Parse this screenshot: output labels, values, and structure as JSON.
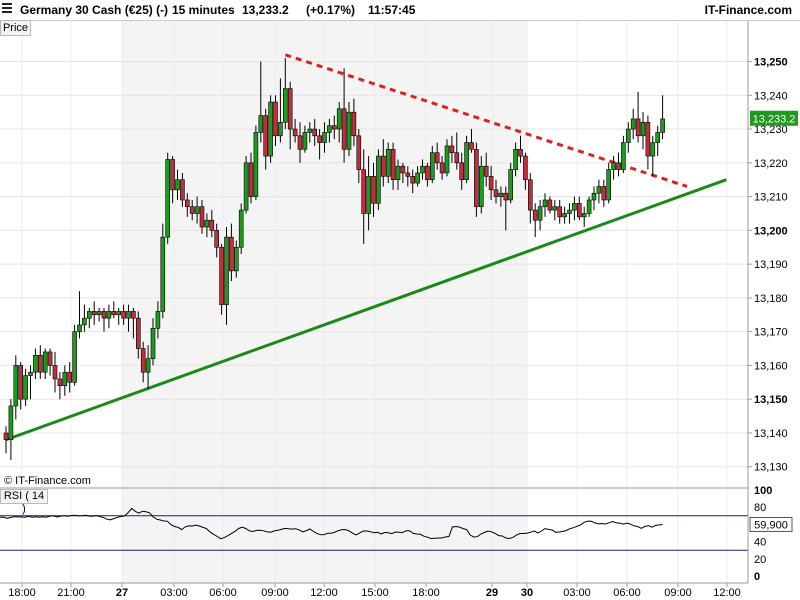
{
  "header": {
    "instrument": "Germany 30 Cash (€25) (-)",
    "timeframe": "15 minutes",
    "last_price": "13,233.2",
    "change": "(+0.17%)",
    "time": "11:57:45",
    "brand": "IT-Finance.com"
  },
  "price_panel": {
    "tab_label": "Price",
    "watermark": "© IT-Finance.com"
  },
  "rsi_panel": {
    "tab_label": "RSI ( 14 )"
  },
  "colors": {
    "up": "#1e9b1e",
    "down": "#c0303c",
    "trendline_support": "#1a8a1a",
    "trendline_resistance": "#e02020",
    "rsi_line": "#000000",
    "rsi_levels": "#1a1a80",
    "session_shade": "#f4f4f4"
  },
  "chart_data": {
    "type": "candlestick",
    "price_axis": {
      "ticks": [
        13130,
        13140,
        13150,
        13160,
        13170,
        13180,
        13190,
        13200,
        13210,
        13220,
        13230,
        13240,
        13250
      ],
      "tick_labels": [
        "13,130",
        "13,140",
        "13,150",
        "13,160",
        "13,170",
        "13,180",
        "13,190",
        "13,200",
        "13,210",
        "13,220",
        "13,230",
        "13,240",
        "13,250"
      ],
      "bold_ticks": [
        "13,150",
        "13,200",
        "13,250"
      ],
      "range": [
        13124,
        13262
      ],
      "last_price_label": "13,233.2",
      "last_price": 13233.2
    },
    "time_axis": {
      "labels": [
        "18:00",
        "21:00",
        "27",
        "03:00",
        "06:00",
        "09:00",
        "12:00",
        "15:00",
        "18:00",
        "29",
        "30",
        "03:00",
        "06:00",
        "09:00",
        "12:00"
      ],
      "bold_labels": [
        "27",
        "29",
        "30"
      ]
    },
    "rsi_axis": {
      "ticks": [
        0,
        20,
        40,
        60,
        80,
        100
      ],
      "tick_labels": [
        "0",
        "20",
        "40",
        "60",
        "80",
        "100"
      ],
      "bold_ticks": [
        "0",
        "100"
      ],
      "levels": [
        70,
        30
      ],
      "last_value_label": "59,900",
      "last_value": 59.9
    },
    "trendlines": [
      {
        "name": "support",
        "style": "solid",
        "from": {
          "bar": 0,
          "price": 13138
        },
        "to": {
          "bar": 147,
          "price": 13215
        }
      },
      {
        "name": "resistance",
        "style": "dashed",
        "from": {
          "bar": 57,
          "price": 13252
        },
        "to": {
          "bar": 139,
          "price": 13213
        }
      }
    ],
    "ohlc": [
      [
        13140,
        13142,
        13134,
        13138
      ],
      [
        13138,
        13150,
        13132,
        13148
      ],
      [
        13148,
        13163,
        13144,
        13160
      ],
      [
        13160,
        13161,
        13147,
        13150
      ],
      [
        13150,
        13159,
        13148,
        13157
      ],
      [
        13157,
        13160,
        13150,
        13158
      ],
      [
        13158,
        13165,
        13156,
        13163
      ],
      [
        13163,
        13166,
        13156,
        13158
      ],
      [
        13158,
        13165,
        13156,
        13164
      ],
      [
        13164,
        13165,
        13157,
        13160
      ],
      [
        13160,
        13164,
        13152,
        13156
      ],
      [
        13156,
        13158,
        13150,
        13154
      ],
      [
        13154,
        13160,
        13151,
        13158
      ],
      [
        13158,
        13161,
        13152,
        13155
      ],
      [
        13155,
        13172,
        13154,
        13170
      ],
      [
        13170,
        13182,
        13168,
        13172
      ],
      [
        13172,
        13178,
        13170,
        13174
      ],
      [
        13174,
        13177,
        13171,
        13176
      ],
      [
        13176,
        13179,
        13172,
        13175
      ],
      [
        13175,
        13177,
        13173,
        13176
      ],
      [
        13176,
        13177,
        13170,
        13174
      ],
      [
        13174,
        13178,
        13171,
        13176
      ],
      [
        13176,
        13179,
        13174,
        13175
      ],
      [
        13175,
        13177,
        13172,
        13176
      ],
      [
        13176,
        13178,
        13172,
        13174
      ],
      [
        13174,
        13178,
        13170,
        13176
      ],
      [
        13176,
        13177,
        13168,
        13174
      ],
      [
        13174,
        13176,
        13162,
        13165
      ],
      [
        13165,
        13167,
        13155,
        13158
      ],
      [
        13158,
        13166,
        13153,
        13162
      ],
      [
        13162,
        13174,
        13160,
        13171
      ],
      [
        13171,
        13179,
        13168,
        13176
      ],
      [
        13176,
        13202,
        13174,
        13198
      ],
      [
        13198,
        13223,
        13196,
        13221
      ],
      [
        13221,
        13222,
        13208,
        13212
      ],
      [
        13212,
        13218,
        13209,
        13215
      ],
      [
        13215,
        13217,
        13207,
        13209
      ],
      [
        13209,
        13211,
        13204,
        13207
      ],
      [
        13207,
        13209,
        13203,
        13205
      ],
      [
        13205,
        13210,
        13202,
        13207
      ],
      [
        13207,
        13209,
        13199,
        13201
      ],
      [
        13201,
        13205,
        13198,
        13203
      ],
      [
        13203,
        13206,
        13198,
        13200
      ],
      [
        13200,
        13202,
        13192,
        13195
      ],
      [
        13195,
        13196,
        13175,
        13178
      ],
      [
        13178,
        13201,
        13172,
        13198
      ],
      [
        13198,
        13202,
        13185,
        13188
      ],
      [
        13188,
        13197,
        13186,
        13195
      ],
      [
        13195,
        13208,
        13193,
        13206
      ],
      [
        13206,
        13222,
        13205,
        13220
      ],
      [
        13220,
        13223,
        13208,
        13210
      ],
      [
        13210,
        13231,
        13209,
        13229
      ],
      [
        13229,
        13250,
        13226,
        13234
      ],
      [
        13234,
        13236,
        13218,
        13222
      ],
      [
        13222,
        13240,
        13220,
        13238
      ],
      [
        13238,
        13240,
        13225,
        13228
      ],
      [
        13228,
        13245,
        13226,
        13232
      ],
      [
        13232,
        13251,
        13230,
        13242
      ],
      [
        13242,
        13244,
        13224,
        13230
      ],
      [
        13230,
        13233,
        13226,
        13228
      ],
      [
        13228,
        13232,
        13220,
        13224
      ],
      [
        13224,
        13231,
        13223,
        13229
      ],
      [
        13229,
        13232,
        13226,
        13230
      ],
      [
        13230,
        13233,
        13225,
        13228
      ],
      [
        13228,
        13230,
        13221,
        13226
      ],
      [
        13226,
        13232,
        13223,
        13229
      ],
      [
        13229,
        13233,
        13226,
        13231
      ],
      [
        13231,
        13234,
        13227,
        13230
      ],
      [
        13230,
        13238,
        13226,
        13236
      ],
      [
        13236,
        13248,
        13220,
        13224
      ],
      [
        13224,
        13238,
        13222,
        13235
      ],
      [
        13235,
        13239,
        13225,
        13228
      ],
      [
        13228,
        13230,
        13214,
        13218
      ],
      [
        13218,
        13224,
        13196,
        13205
      ],
      [
        13205,
        13222,
        13200,
        13216
      ],
      [
        13216,
        13220,
        13204,
        13208
      ],
      [
        13208,
        13224,
        13206,
        13222
      ],
      [
        13222,
        13227,
        13213,
        13216
      ],
      [
        13216,
        13226,
        13214,
        13224
      ],
      [
        13224,
        13226,
        13212,
        13215
      ],
      [
        13215,
        13221,
        13212,
        13219
      ],
      [
        13219,
        13220,
        13214,
        13217
      ],
      [
        13217,
        13219,
        13213,
        13216
      ],
      [
        13216,
        13218,
        13211,
        13214
      ],
      [
        13214,
        13219,
        13213,
        13217
      ],
      [
        13217,
        13221,
        13215,
        13219
      ],
      [
        13219,
        13220,
        13213,
        13215
      ],
      [
        13215,
        13225,
        13214,
        13223
      ],
      [
        13223,
        13226,
        13218,
        13220
      ],
      [
        13220,
        13222,
        13215,
        13217
      ],
      [
        13217,
        13227,
        13216,
        13225
      ],
      [
        13225,
        13228,
        13220,
        13223
      ],
      [
        13223,
        13229,
        13218,
        13220
      ],
      [
        13220,
        13223,
        13212,
        13215
      ],
      [
        13215,
        13228,
        13214,
        13226
      ],
      [
        13226,
        13230,
        13223,
        13224
      ],
      [
        13224,
        13226,
        13204,
        13207
      ],
      [
        13207,
        13222,
        13205,
        13219
      ],
      [
        13219,
        13223,
        13213,
        13216
      ],
      [
        13216,
        13219,
        13209,
        13212
      ],
      [
        13212,
        13215,
        13208,
        13210
      ],
      [
        13210,
        13213,
        13207,
        13211
      ],
      [
        13211,
        13213,
        13200,
        13209
      ],
      [
        13209,
        13220,
        13208,
        13218
      ],
      [
        13218,
        13226,
        13216,
        13224
      ],
      [
        13224,
        13228,
        13220,
        13222
      ],
      [
        13222,
        13223,
        13212,
        13215
      ],
      [
        13215,
        13217,
        13202,
        13206
      ],
      [
        13206,
        13208,
        13198,
        13203
      ],
      [
        13203,
        13209,
        13200,
        13207
      ],
      [
        13207,
        13211,
        13204,
        13209
      ],
      [
        13209,
        13210,
        13205,
        13206
      ],
      [
        13206,
        13209,
        13203,
        13207
      ],
      [
        13207,
        13209,
        13202,
        13204
      ],
      [
        13204,
        13207,
        13202,
        13205
      ],
      [
        13205,
        13208,
        13202,
        13206
      ],
      [
        13206,
        13210,
        13203,
        13208
      ],
      [
        13208,
        13210,
        13203,
        13204
      ],
      [
        13204,
        13207,
        13201,
        13205
      ],
      [
        13205,
        13210,
        13204,
        13209
      ],
      [
        13209,
        13213,
        13206,
        13211
      ],
      [
        13211,
        13215,
        13208,
        13213
      ],
      [
        13213,
        13215,
        13207,
        13209
      ],
      [
        13209,
        13220,
        13208,
        13218
      ],
      [
        13218,
        13222,
        13215,
        13220
      ],
      [
        13220,
        13223,
        13216,
        13218
      ],
      [
        13218,
        13228,
        13217,
        13226
      ],
      [
        13226,
        13232,
        13223,
        13230
      ],
      [
        13230,
        13236,
        13227,
        13233
      ],
      [
        13233,
        13241,
        13226,
        13228
      ],
      [
        13228,
        13235,
        13224,
        13232
      ],
      [
        13232,
        13234,
        13218,
        13222
      ],
      [
        13222,
        13228,
        13216,
        13226
      ],
      [
        13226,
        13231,
        13222,
        13229
      ],
      [
        13229,
        13240,
        13227,
        13233
      ]
    ],
    "rsi": [
      68.2,
      68.5,
      67.1,
      68.0,
      68.9,
      68.7,
      68.6,
      68.3,
      69.3,
      68.4,
      68.8,
      68.3,
      69.0,
      68.4,
      69.6,
      70.0,
      68.6,
      69.7,
      70.1,
      69.4,
      70.3,
      70.6,
      69.9,
      70.1,
      70.6,
      69.6,
      69.5,
      70.4,
      68.9,
      68.2,
      66.0,
      65.2,
      66.9,
      68.3,
      69.2,
      69.9,
      73.8,
      78.6,
      75.1,
      73.1,
      75.2,
      74.7,
      73.5,
      68.7,
      66.1,
      65.1,
      63.9,
      63.7,
      59.7,
      57.5,
      56.5,
      54.0,
      57.1,
      58.3,
      58.1,
      59.1,
      58.0,
      56.5,
      55.0,
      51.1,
      48.4,
      45.9,
      43.4,
      44.6,
      47.0,
      49.5,
      52.0,
      55.2,
      56.8,
      55.2,
      52.5,
      51.7,
      53.0,
      53.3,
      52.6,
      51.3,
      50.9,
      52.5,
      53.1,
      54.2,
      55.4,
      54.9,
      54.5,
      55.0,
      53.6,
      51.4,
      52.8,
      54.7,
      51.8,
      49.3,
      47.9,
      48.1,
      49.8,
      49.7,
      51.1,
      52.8,
      53.9,
      54.0,
      52.6,
      49.7,
      47.8,
      50.2,
      52.3,
      52.3,
      51.5,
      50.3,
      50.8,
      48.9,
      50.6,
      50.2,
      49.3,
      51.2,
      50.8,
      50.5,
      52.7,
      52.5,
      49.5,
      48.8,
      48.5,
      46.3,
      45.1,
      43.6,
      44.0,
      44.2,
      44.2,
      45.3,
      45.9,
      57.0,
      57.6,
      56.9,
      55.1,
      53.9,
      47.7,
      45.3,
      45.7,
      48.8,
      50.7,
      52.2,
      51.4,
      49.4,
      47.0,
      46.5,
      44.2,
      43.6,
      45.0,
      47.6,
      49.4,
      49.4,
      49.9,
      50.9,
      52.5,
      49.9,
      52.3,
      55.1,
      54.2,
      53.5,
      50.8,
      51.2,
      51.9,
      52.9,
      55.1,
      56.2,
      57.8,
      59.4,
      62.5,
      63.8,
      63.6,
      61.7,
      60.6,
      61.1,
      60.5,
      62.0,
      63.4,
      61.8,
      61.5,
      60.3,
      61.5,
      60.4,
      58.3,
      57.5,
      55.5,
      57.5,
      58.6,
      56.8,
      58.8,
      59.3,
      59.9
    ]
  }
}
